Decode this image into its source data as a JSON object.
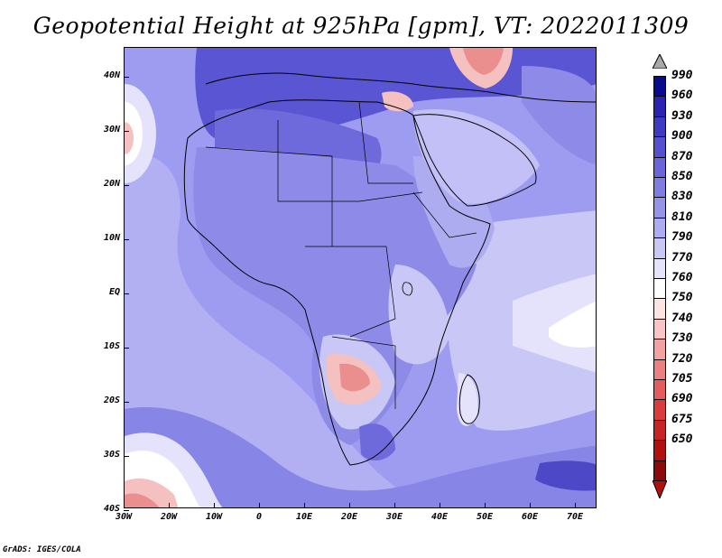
{
  "title": "Geopotential Height at 925hPa [gpm], VT: 2022011309",
  "credit": "GrADS: IGES/COLA",
  "axes": {
    "y_ticks": [
      "40N",
      "30N",
      "20N",
      "10N",
      "EQ",
      "10S",
      "20S",
      "30S",
      "40S"
    ],
    "x_ticks": [
      "30W",
      "20W",
      "10W",
      "0",
      "10E",
      "20E",
      "30E",
      "40E",
      "50E",
      "60E",
      "70E"
    ]
  },
  "colorbar": {
    "labels": [
      "990",
      "960",
      "930",
      "900",
      "870",
      "850",
      "830",
      "810",
      "790",
      "770",
      "760",
      "750",
      "740",
      "730",
      "720",
      "705",
      "690",
      "675",
      "650"
    ],
    "colors": [
      "#0a0a8e",
      "#2a24b0",
      "#3f3ac4",
      "#5550d0",
      "#6a66da",
      "#7f7ce2",
      "#9693e9",
      "#aeacf0",
      "#c8c7f5",
      "#e4e3fb",
      "#ffffff",
      "#fde3e3",
      "#f9c4c4",
      "#f3a2a2",
      "#ec7f7f",
      "#e45c5c",
      "#d93c3c",
      "#c92424",
      "#b01010",
      "#8e0a0a"
    ],
    "over_color": "#a8a8a8",
    "under_color": "#b01010"
  },
  "fill_colors": {
    "ocean_base": "#9e9cf0",
    "ocean_light": "#b7b5f4",
    "land_light": "#c2c0f6",
    "land_mid": "#8e8be8",
    "land_dark": "#6e6adc",
    "north_dark": "#5a55d2",
    "south_dark": "#5652cc",
    "pale": "#d9d8fa",
    "white": "#ffffff",
    "pink": "#f7c8c8",
    "red": "#e98c8c"
  }
}
